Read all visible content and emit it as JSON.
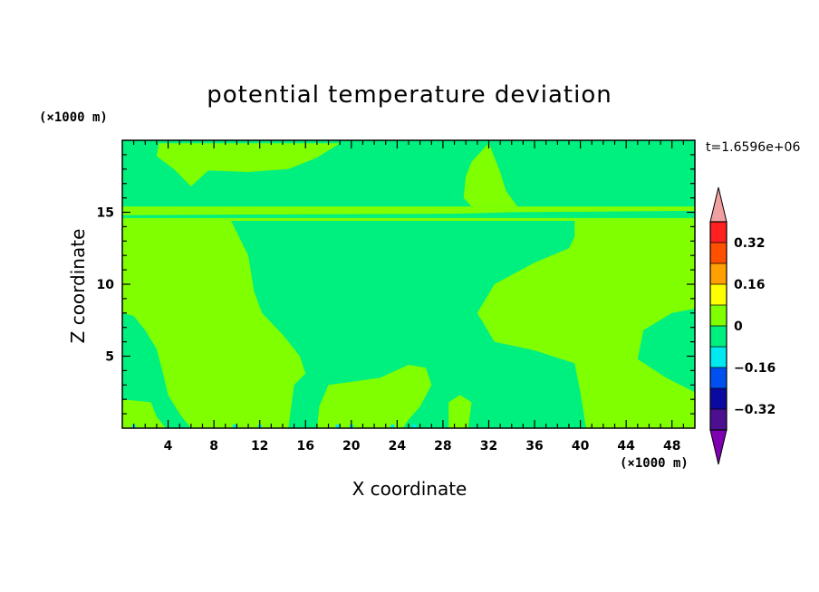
{
  "chart_data": {
    "type": "heatmap",
    "title": "potential temperature deviation",
    "xlabel": "X coordinate",
    "ylabel": "Z coordinate",
    "x_unit_label": "(×1000 m)",
    "y_unit_label": "(×1000 m)",
    "time_label": "t=1.6596e+06",
    "xlim": [
      0,
      50
    ],
    "ylim": [
      0,
      20
    ],
    "x_ticks": [
      4,
      8,
      12,
      16,
      20,
      24,
      28,
      32,
      36,
      40,
      44,
      48
    ],
    "y_ticks": [
      5,
      10,
      15
    ],
    "colorbar": {
      "levels": [
        -0.4,
        -0.32,
        -0.24,
        -0.16,
        -0.08,
        0,
        0.08,
        0.16,
        0.24,
        0.32,
        0.4
      ],
      "labels": [
        "0.32",
        "0.16",
        "0",
        "−0.16",
        "−0.32"
      ],
      "label_values": [
        0.32,
        0.16,
        0,
        -0.16,
        -0.32
      ],
      "colors_bottom_to_top": [
        "#4B0F8F",
        "#0A0AA0",
        "#0050F0",
        "#00E8F0",
        "#00F080",
        "#80FF00",
        "#FFFF00",
        "#FFA000",
        "#FF5000",
        "#FF2020"
      ],
      "under_color": "#7F00B0",
      "over_color": "#F0A0A0"
    },
    "fill_background_value_range": [
      -0.08,
      0
    ],
    "fill_background_color": "#00F080",
    "regions_value_range": [
      0,
      0.08
    ],
    "regions_color": "#80FF00",
    "regions": [
      [
        [
          3.2,
          19.8
        ],
        [
          19.0,
          19.8
        ],
        [
          17.0,
          18.8
        ],
        [
          14.5,
          18.0
        ],
        [
          11.0,
          17.8
        ],
        [
          7.5,
          17.9
        ],
        [
          6.0,
          16.8
        ],
        [
          4.5,
          18.0
        ],
        [
          3.0,
          18.9
        ]
      ],
      [
        [
          0,
          15.4
        ],
        [
          50,
          15.4
        ],
        [
          50,
          15.1
        ],
        [
          34,
          15.0
        ],
        [
          29,
          14.9
        ],
        [
          0,
          14.8
        ]
      ],
      [
        [
          0,
          14.6
        ],
        [
          50,
          14.6
        ],
        [
          50,
          14.4
        ],
        [
          0,
          14.4
        ]
      ],
      [
        [
          0,
          14.4
        ],
        [
          9.5,
          14.4
        ],
        [
          11.0,
          12.0
        ],
        [
          11.5,
          9.5
        ],
        [
          12.2,
          8.0
        ],
        [
          14.0,
          6.5
        ],
        [
          15.5,
          5.0
        ],
        [
          16.0,
          3.8
        ],
        [
          15.0,
          3.0
        ],
        [
          14.5,
          0.0
        ],
        [
          6.0,
          0.0
        ],
        [
          5.0,
          1.0
        ],
        [
          4.0,
          2.3
        ],
        [
          3.5,
          4.0
        ],
        [
          3.0,
          5.5
        ],
        [
          2.0,
          6.8
        ],
        [
          1.0,
          7.8
        ],
        [
          0,
          8.0
        ]
      ],
      [
        [
          0,
          2.0
        ],
        [
          2.5,
          1.8
        ],
        [
          3.0,
          0.8
        ],
        [
          3.8,
          0.0
        ],
        [
          0,
          0.0
        ]
      ],
      [
        [
          18.0,
          3.0
        ],
        [
          22.5,
          3.5
        ],
        [
          25.0,
          4.4
        ],
        [
          26.5,
          4.2
        ],
        [
          27.0,
          3.0
        ],
        [
          26.0,
          1.5
        ],
        [
          25.0,
          0.6
        ],
        [
          24.5,
          0.0
        ],
        [
          17.0,
          0.0
        ],
        [
          17.2,
          1.5
        ]
      ],
      [
        [
          28.5,
          1.8
        ],
        [
          29.5,
          2.3
        ],
        [
          30.5,
          1.8
        ],
        [
          30.2,
          0.0
        ],
        [
          28.5,
          0.0
        ]
      ],
      [
        [
          39.0,
          12.5
        ],
        [
          36.0,
          11.5
        ],
        [
          32.5,
          10.0
        ],
        [
          31.0,
          8.0
        ],
        [
          32.5,
          6.0
        ],
        [
          36.0,
          5.4
        ],
        [
          39.5,
          4.5
        ],
        [
          40.0,
          2.5
        ],
        [
          40.5,
          0.0
        ],
        [
          50,
          0.0
        ],
        [
          50,
          2.5
        ],
        [
          47.5,
          3.5
        ],
        [
          45.0,
          4.8
        ],
        [
          45.5,
          6.8
        ],
        [
          48.0,
          8.0
        ],
        [
          50,
          8.3
        ],
        [
          50,
          14.4
        ],
        [
          39.5,
          14.4
        ],
        [
          39.5,
          13.3
        ]
      ],
      [
        [
          32.0,
          19.8
        ],
        [
          30.5,
          18.5
        ],
        [
          30.0,
          17.5
        ],
        [
          29.8,
          16.0
        ],
        [
          30.5,
          15.4
        ],
        [
          34.5,
          15.4
        ],
        [
          33.5,
          16.5
        ],
        [
          33.0,
          17.8
        ]
      ]
    ],
    "edge_specks_value_range": [
      -0.16,
      -0.08
    ],
    "edge_specks_color": "#00E8F0",
    "edge_specks_x": [
      1.0,
      9.8,
      12.0,
      18.8,
      20.0,
      23.6,
      25.5
    ]
  }
}
